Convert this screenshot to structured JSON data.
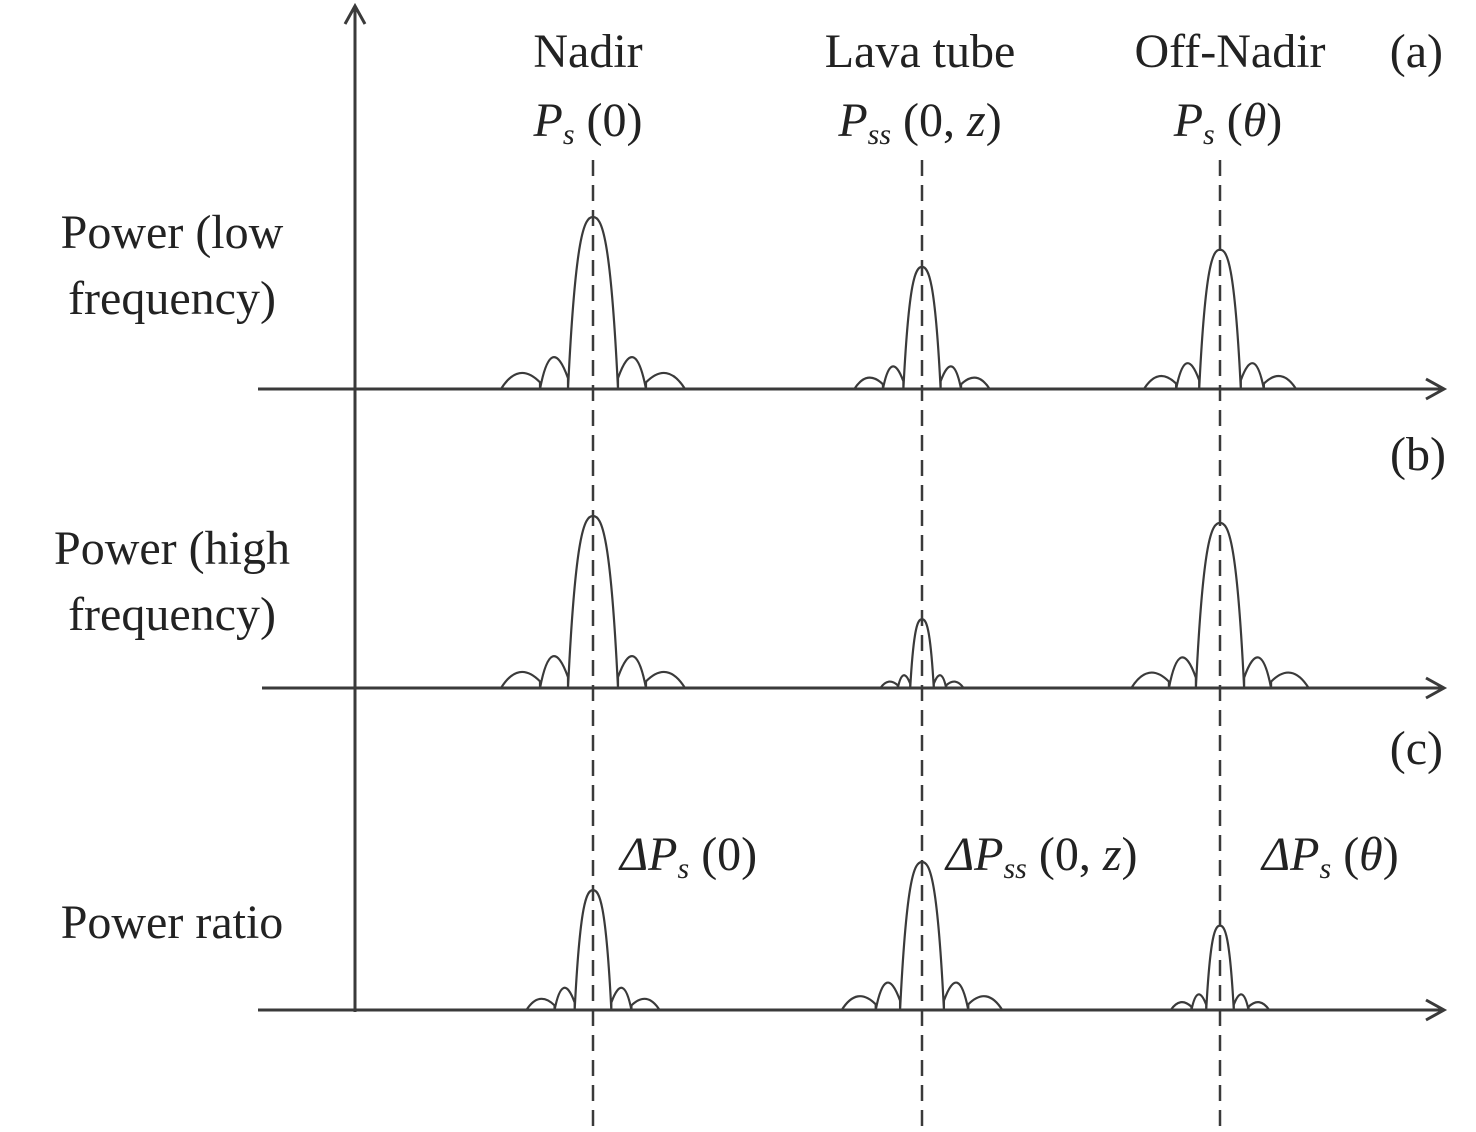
{
  "colors": {
    "ink": "#3a3a3a",
    "background": "#ffffff"
  },
  "columns": [
    {
      "name": "Nadir",
      "symbol": "P",
      "subscript": "s",
      "arg_open": " (",
      "arg_var": "0",
      "arg_close": ")"
    },
    {
      "name": "Lava tube",
      "symbol": "P",
      "subscript": "ss",
      "arg_open": " (0, ",
      "arg_var": "z",
      "arg_close": ")"
    },
    {
      "name": "Off-Nadir",
      "symbol": "P",
      "subscript": "s",
      "arg_open": " (",
      "arg_var": "θ",
      "arg_close": ")"
    }
  ],
  "panels": [
    {
      "tag": "(a)",
      "label_lines": [
        "Power (low",
        "frequency)"
      ],
      "peaks": [
        {
          "column": "Nadir",
          "relative_height": 1.0
        },
        {
          "column": "Lava tube",
          "relative_height": 0.71
        },
        {
          "column": "Off-Nadir",
          "relative_height": 0.81
        }
      ]
    },
    {
      "tag": "(b)",
      "label_lines": [
        "Power (high",
        "frequency)"
      ],
      "peaks": [
        {
          "column": "Nadir",
          "relative_height": 1.0
        },
        {
          "column": "Lava tube",
          "relative_height": 0.4
        },
        {
          "column": "Off-Nadir",
          "relative_height": 0.96
        }
      ]
    },
    {
      "tag": "(c)",
      "label_lines": [
        "Power ratio"
      ],
      "peak_labels": [
        {
          "prefix": "ΔP",
          "subscript": "s",
          "arg_open": " (0)",
          "arg_var": "",
          "arg_close": ""
        },
        {
          "prefix": "ΔP",
          "subscript": "ss",
          "arg_open": " (0, ",
          "arg_var": "z",
          "arg_close": ")"
        },
        {
          "prefix": "ΔP",
          "subscript": "s",
          "arg_open": " (",
          "arg_var": "θ",
          "arg_close": ")"
        }
      ],
      "peaks": [
        {
          "column": "Nadir",
          "relative_height": 0.81
        },
        {
          "column": "Lava tube",
          "relative_height": 1.0
        },
        {
          "column": "Off-Nadir",
          "relative_height": 0.57
        }
      ]
    }
  ]
}
